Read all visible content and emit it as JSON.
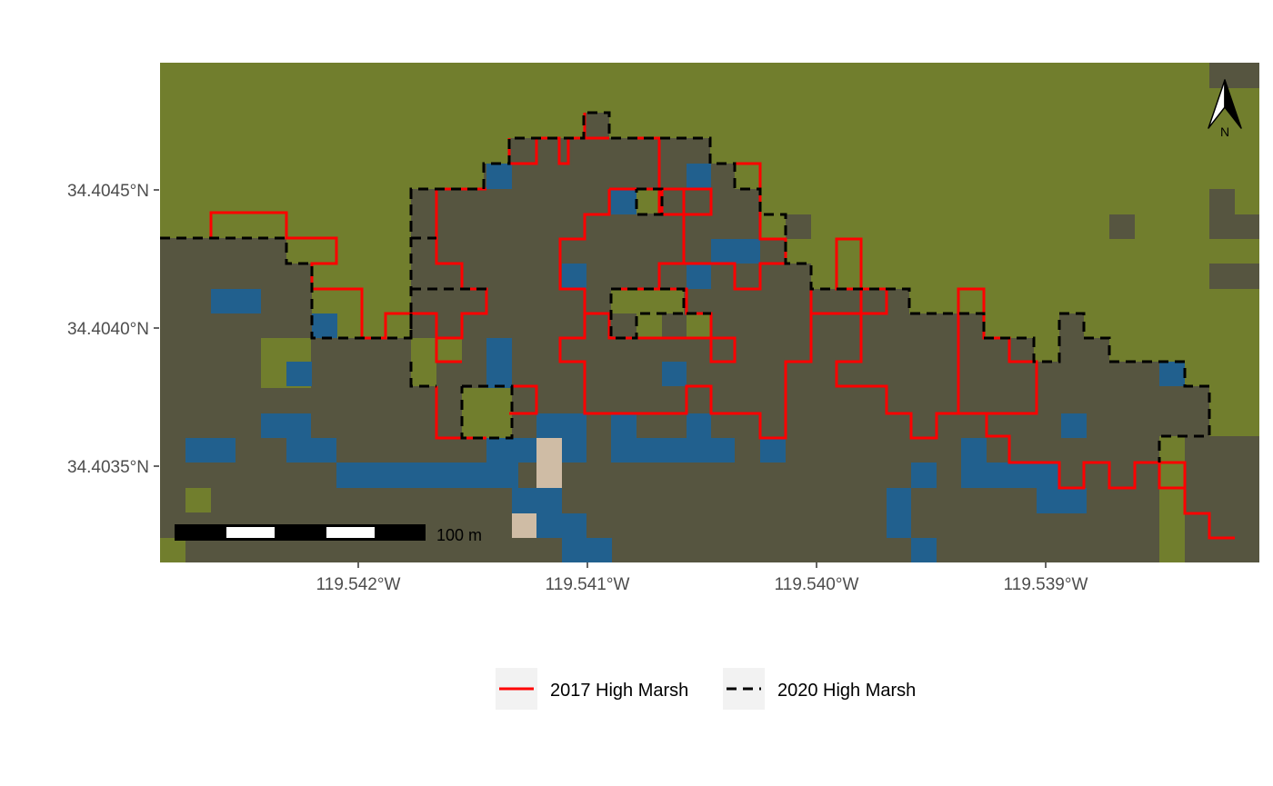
{
  "map": {
    "axes": {
      "y_ticks": [
        {
          "label": "34.4045°N",
          "value": 34.4045
        },
        {
          "label": "34.4040°N",
          "value": 34.404
        },
        {
          "label": "34.4035°N",
          "value": 34.4035
        }
      ],
      "x_ticks": [
        {
          "label": "119.542°W",
          "value": -119.542
        },
        {
          "label": "119.541°W",
          "value": -119.541
        },
        {
          "label": "119.540°W",
          "value": -119.54
        },
        {
          "label": "119.539°W",
          "value": -119.539
        }
      ]
    },
    "colors": {
      "upland": "#717e2d",
      "marsh": "#565540",
      "water": "#21608e",
      "bare": "#cfbca5",
      "line_2017": "#ff0000",
      "line_2020": "#000000"
    },
    "legend": {
      "items": [
        {
          "label": "2017 High Marsh",
          "style": "solid",
          "color": "#ff0000"
        },
        {
          "label": "2020 High Marsh",
          "style": "dashed",
          "color": "#000000"
        }
      ]
    },
    "scale_bar": {
      "label": "100 m"
    },
    "north_arrow": {
      "label": "N"
    }
  }
}
